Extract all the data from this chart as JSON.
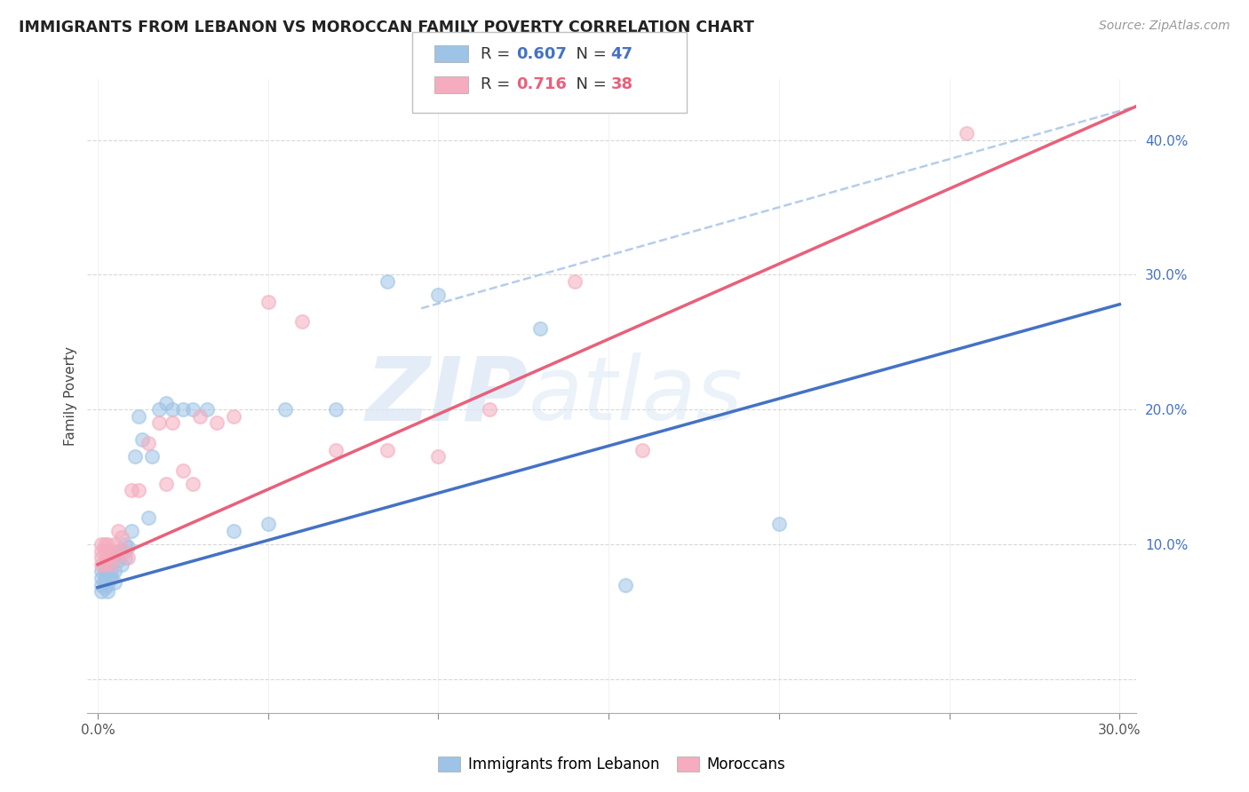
{
  "title": "IMMIGRANTS FROM LEBANON VS MOROCCAN FAMILY POVERTY CORRELATION CHART",
  "source": "Source: ZipAtlas.com",
  "ylabel": "Family Poverty",
  "xlim": [
    -0.003,
    0.305
  ],
  "ylim": [
    -0.025,
    0.445
  ],
  "yticks": [
    0.0,
    0.1,
    0.2,
    0.3,
    0.4
  ],
  "ytick_labels": [
    "",
    "10.0%",
    "20.0%",
    "30.0%",
    "40.0%"
  ],
  "xticks": [
    0.0,
    0.05,
    0.1,
    0.15,
    0.2,
    0.25,
    0.3
  ],
  "xtick_labels": [
    "0.0%",
    "",
    "",
    "",
    "",
    "",
    "30.0%"
  ],
  "legend_blue_r": "0.607",
  "legend_blue_n": "47",
  "legend_pink_r": "0.716",
  "legend_pink_n": "38",
  "blue_color": "#9DC3E6",
  "pink_color": "#F4ACBE",
  "blue_line_color": "#4472C4",
  "pink_line_color": "#E8607A",
  "dashed_color": "#A9C4E8",
  "watermark_zip": "ZIP",
  "watermark_atlas": "atlas",
  "blue_scatter_x": [
    0.001,
    0.001,
    0.001,
    0.001,
    0.002,
    0.002,
    0.002,
    0.002,
    0.002,
    0.003,
    0.003,
    0.003,
    0.003,
    0.004,
    0.004,
    0.004,
    0.005,
    0.005,
    0.005,
    0.006,
    0.006,
    0.007,
    0.007,
    0.008,
    0.008,
    0.009,
    0.01,
    0.011,
    0.012,
    0.013,
    0.015,
    0.016,
    0.018,
    0.02,
    0.022,
    0.025,
    0.028,
    0.032,
    0.04,
    0.05,
    0.055,
    0.07,
    0.085,
    0.1,
    0.13,
    0.155,
    0.2
  ],
  "blue_scatter_y": [
    0.075,
    0.07,
    0.08,
    0.065,
    0.08,
    0.072,
    0.068,
    0.085,
    0.075,
    0.078,
    0.065,
    0.082,
    0.07,
    0.085,
    0.075,
    0.078,
    0.09,
    0.08,
    0.072,
    0.095,
    0.088,
    0.095,
    0.085,
    0.1,
    0.09,
    0.098,
    0.11,
    0.165,
    0.195,
    0.178,
    0.12,
    0.165,
    0.2,
    0.205,
    0.2,
    0.2,
    0.2,
    0.2,
    0.11,
    0.115,
    0.2,
    0.2,
    0.295,
    0.285,
    0.26,
    0.07,
    0.115
  ],
  "pink_scatter_x": [
    0.001,
    0.001,
    0.001,
    0.001,
    0.002,
    0.002,
    0.002,
    0.003,
    0.003,
    0.004,
    0.004,
    0.005,
    0.005,
    0.006,
    0.006,
    0.007,
    0.008,
    0.009,
    0.01,
    0.012,
    0.015,
    0.018,
    0.02,
    0.022,
    0.025,
    0.028,
    0.03,
    0.035,
    0.04,
    0.05,
    0.06,
    0.07,
    0.085,
    0.1,
    0.115,
    0.14,
    0.16,
    0.255
  ],
  "pink_scatter_y": [
    0.095,
    0.085,
    0.1,
    0.09,
    0.1,
    0.095,
    0.085,
    0.1,
    0.09,
    0.095,
    0.085,
    0.1,
    0.09,
    0.11,
    0.095,
    0.105,
    0.095,
    0.09,
    0.14,
    0.14,
    0.175,
    0.19,
    0.145,
    0.19,
    0.155,
    0.145,
    0.195,
    0.19,
    0.195,
    0.28,
    0.265,
    0.17,
    0.17,
    0.165,
    0.2,
    0.295,
    0.17,
    0.405
  ],
  "blue_line_x": [
    0.0,
    0.3
  ],
  "blue_line_y": [
    0.068,
    0.278
  ],
  "pink_line_x": [
    0.0,
    0.305
  ],
  "pink_line_y": [
    0.085,
    0.425
  ],
  "dashed_line_x": [
    0.095,
    0.305
  ],
  "dashed_line_y": [
    0.275,
    0.425
  ]
}
